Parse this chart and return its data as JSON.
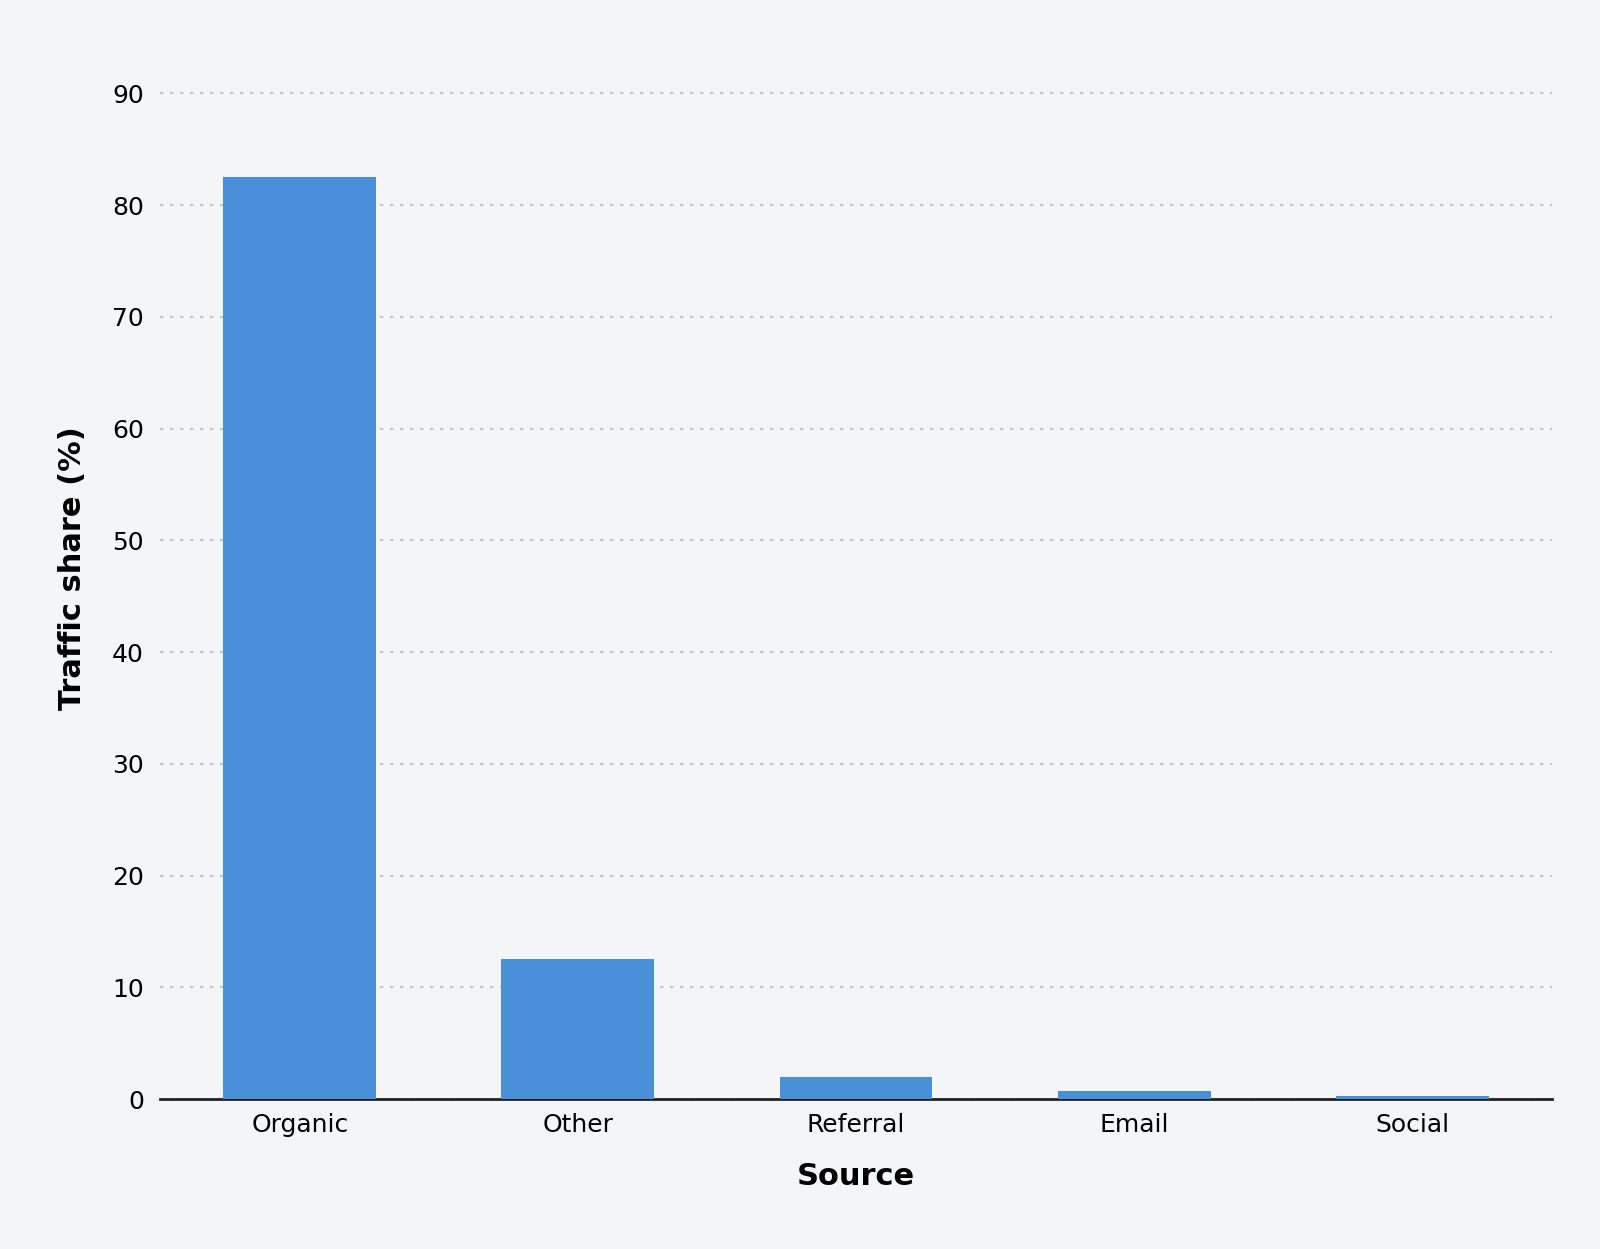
{
  "categories": [
    "Organic",
    "Other",
    "Referral",
    "Email",
    "Social"
  ],
  "values": [
    82.5,
    12.5,
    2.0,
    0.7,
    0.3
  ],
  "bar_color": "#4A90D9",
  "xlabel": "Source",
  "ylabel": "Traffic share (%)",
  "ylim": [
    0,
    95
  ],
  "yticks": [
    0,
    10,
    20,
    30,
    40,
    50,
    60,
    70,
    80,
    90
  ],
  "background_color": "#F4F5F7",
  "grid_color": "#BBBBBB",
  "xlabel_fontsize": 22,
  "ylabel_fontsize": 22,
  "tick_fontsize": 18,
  "bar_width": 0.55,
  "spine_color": "#222222"
}
